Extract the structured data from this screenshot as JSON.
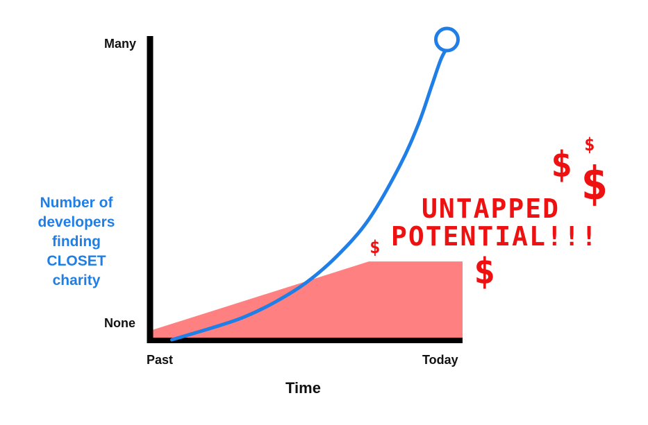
{
  "chart_data": {
    "type": "line",
    "title": "",
    "xlabel": "Time",
    "ylabel_lines": [
      "Number of",
      "developers",
      "finding",
      "CLOSET",
      "charity"
    ],
    "x_tick_labels": [
      "Past",
      "Today"
    ],
    "y_tick_labels": [
      "None",
      "Many"
    ],
    "xlim": [
      0,
      1
    ],
    "ylim": [
      0,
      1
    ],
    "series": [
      {
        "color": "#1f7fe6",
        "x": [
          0.07,
          0.2,
          0.3,
          0.4,
          0.5,
          0.6,
          0.7,
          0.8,
          0.86,
          0.9,
          0.93,
          0.95
        ],
        "y": [
          0.0,
          0.04,
          0.075,
          0.125,
          0.19,
          0.28,
          0.4,
          0.58,
          0.72,
          0.84,
          0.93,
          0.97
        ],
        "end_marker": "open-circle"
      }
    ],
    "shaded_region": {
      "label_lines": [
        "UNTAPPED",
        "POTENTIAL!!!"
      ],
      "color": "#ff8080",
      "x": [
        0,
        0.7,
        1
      ],
      "y": [
        0.03,
        0.26,
        0.26
      ]
    },
    "grid": false,
    "decorations": {
      "dollar_symbol": "$",
      "color": "#ee1111"
    }
  },
  "colors": {
    "axis": "#000000",
    "curve": "#1f7fe6",
    "shade": "#ff8080",
    "annotation": "#ee1111"
  }
}
